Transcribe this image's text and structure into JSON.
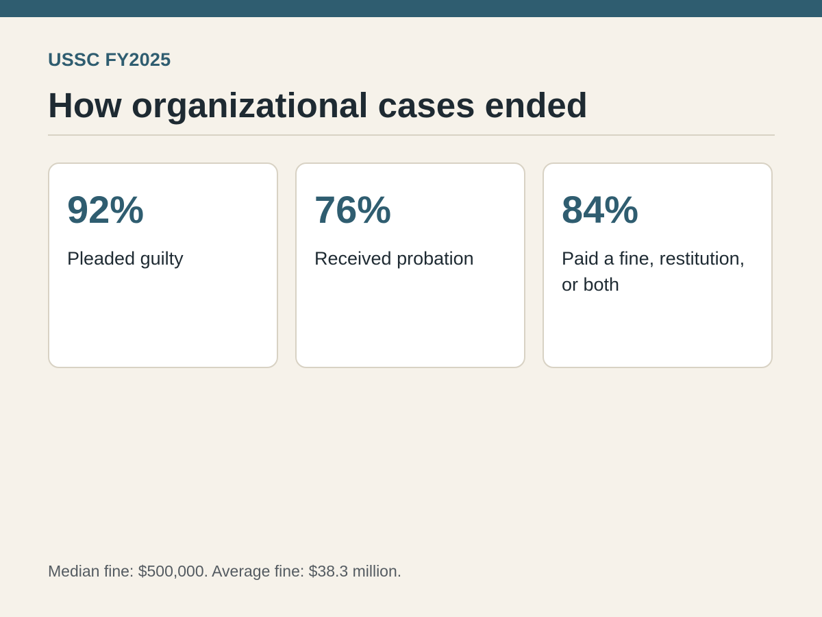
{
  "header": {
    "eyebrow": "USSC FY2025",
    "title": "How organizational cases ended"
  },
  "cards": [
    {
      "value": "92%",
      "label": "Pleaded guilty"
    },
    {
      "value": "76%",
      "label": "Received probation"
    },
    {
      "value": "84%",
      "label": "Paid a fine, restitution, or both"
    }
  ],
  "footnote": "Median fine: $500,000. Average fine: $38.3 million.",
  "colors": {
    "accent": "#2F5D70",
    "background": "#F6F2EA",
    "card_border": "#D8D2C4",
    "text": "#1E2A32"
  }
}
